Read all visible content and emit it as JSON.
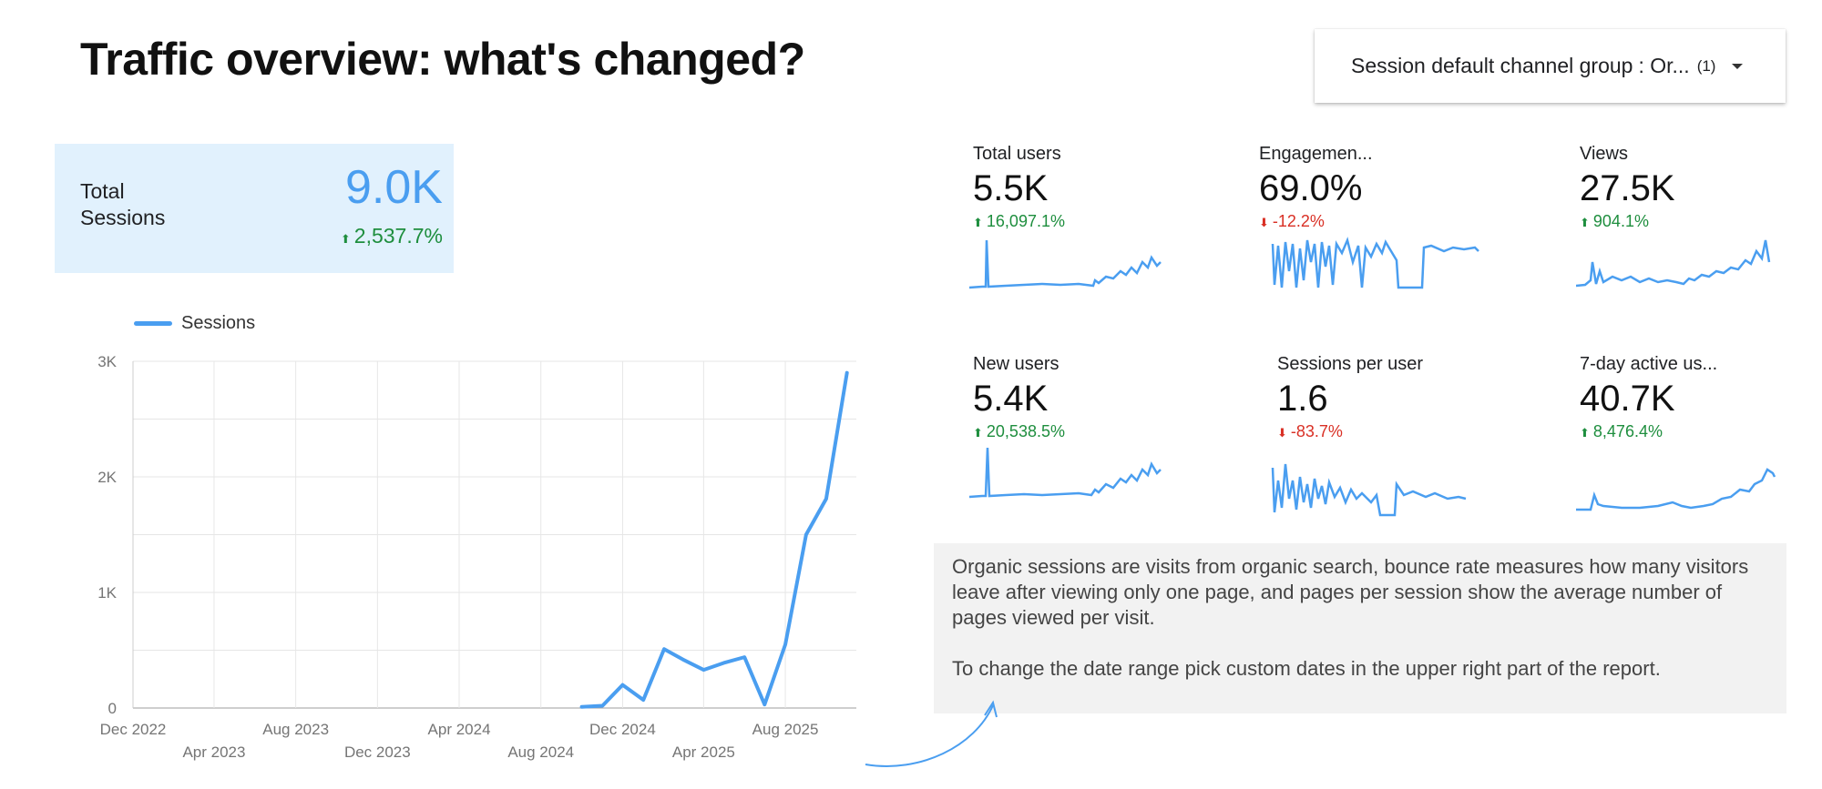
{
  "page": {
    "title": "Traffic overview: what's changed?"
  },
  "filter": {
    "label": "Session default channel group",
    "value": ": Or...",
    "count": "(1)"
  },
  "kpi": {
    "label_line1": "Total",
    "label_line2": "Sessions",
    "value": "9.0K",
    "delta": "2,537.7%",
    "accent": "#4a9ef0",
    "background": "#e1f1fd"
  },
  "metrics": [
    {
      "label": "Total users",
      "value": "5.5K",
      "delta": "16,097.1%",
      "direction": "up"
    },
    {
      "label": "Engagemen...",
      "value": "69.0%",
      "delta": "-12.2%",
      "direction": "down"
    },
    {
      "label": "Views",
      "value": "27.5K",
      "delta": "904.1%",
      "direction": "up"
    },
    {
      "label": "New users",
      "value": "5.4K",
      "delta": "20,538.5%",
      "direction": "up"
    },
    {
      "label": "Sessions per user",
      "value": "1.6",
      "delta": "-83.7%",
      "direction": "down"
    },
    {
      "label": "7-day active us...",
      "value": "40.7K",
      "delta": "8,476.4%",
      "direction": "up"
    }
  ],
  "note": {
    "paragraph1": "Organic sessions are visits from organic search, bounce rate measures how many visitors leave after viewing only one page, and pages per session show the average number of pages viewed per visit.",
    "paragraph2": "To change the date range pick custom dates in the upper right part of the report."
  },
  "colors": {
    "series": "#4a9ef0",
    "up": "#1e8e3e",
    "down": "#d93025",
    "note_bg": "#f2f2f2"
  },
  "chart_data": {
    "type": "line",
    "title": "",
    "xlabel": "",
    "ylabel": "",
    "legend": "top-left",
    "grid": true,
    "ylim": [
      0,
      3000
    ],
    "y_ticks": [
      "0",
      "1K",
      "2K",
      "3K"
    ],
    "x_ticks": [
      "Dec 2022",
      "Apr 2023",
      "Aug 2023",
      "Dec 2023",
      "Apr 2024",
      "Aug 2024",
      "Dec 2024",
      "Apr 2025",
      "Aug 2025"
    ],
    "series": [
      {
        "name": "Sessions",
        "points": [
          {
            "x": "2024-10",
            "y": 10
          },
          {
            "x": "2024-11",
            "y": 20
          },
          {
            "x": "2024-12",
            "y": 200
          },
          {
            "x": "2025-01",
            "y": 70
          },
          {
            "x": "2025-02",
            "y": 510
          },
          {
            "x": "2025-03",
            "y": 420
          },
          {
            "x": "2025-04",
            "y": 330
          },
          {
            "x": "2025-05",
            "y": 390
          },
          {
            "x": "2025-06",
            "y": 440
          },
          {
            "x": "2025-07",
            "y": 30
          },
          {
            "x": "2025-08",
            "y": 550
          },
          {
            "x": "2025-09",
            "y": 1500
          },
          {
            "x": "2025-10",
            "y": 1810
          },
          {
            "x": "2025-11",
            "y": 2900
          }
        ]
      }
    ]
  }
}
